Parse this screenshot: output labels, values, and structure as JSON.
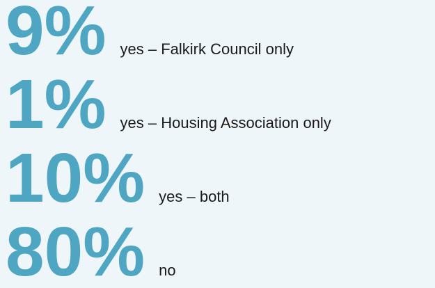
{
  "items": [
    {
      "value": "9%",
      "label": "yes – Falkirk Council only"
    },
    {
      "value": "1%",
      "label": "yes – Housing Association only"
    },
    {
      "value": "10%",
      "label": "yes – both"
    },
    {
      "value": "80%",
      "label": "no"
    }
  ]
}
